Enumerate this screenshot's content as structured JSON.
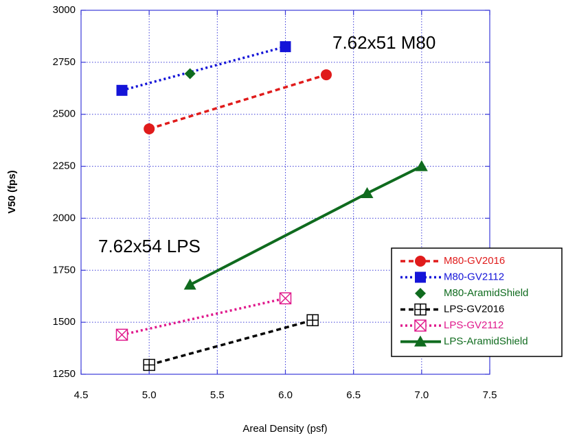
{
  "chart_data": {
    "type": "line",
    "x_label": "Areal Density (psf)",
    "y_label": "V50 (fps)",
    "xlim": [
      4.5,
      7.5
    ],
    "xticks": [
      4.5,
      {
        "value": 5,
        "label": "5.0"
      },
      5.5,
      {
        "value": 6,
        "label": "6.0"
      },
      6.5,
      {
        "value": 7,
        "label": "7.0"
      },
      7.5
    ],
    "ylim": [
      1250,
      3000
    ],
    "yticks": [
      1250,
      1500,
      1750,
      2000,
      2250,
      2500,
      2750,
      3000
    ],
    "grid": true,
    "legend": "center right",
    "annotations": [
      "7.62x51 M80",
      "7.62x54 LPS"
    ],
    "series": [
      {
        "name": "M80-GV2016",
        "color": "#e01b1b",
        "marker": "circle",
        "line": "dashed",
        "x": [
          5.0,
          6.3
        ],
        "values": [
          2430,
          2690
        ]
      },
      {
        "name": "M80-GV2112",
        "color": "#1414d8",
        "marker": "square",
        "line": "dotted",
        "x": [
          4.8,
          6.0
        ],
        "values": [
          2615,
          2825
        ]
      },
      {
        "name": "M80-AramidShield",
        "color": "#0f6b1e",
        "marker": "diamond",
        "line": "none",
        "x": [
          5.3
        ],
        "values": [
          2695
        ]
      },
      {
        "name": "LPS-GV2016",
        "color": "#000000",
        "marker": "square-plus",
        "line": "dashed",
        "x": [
          5.0,
          6.2
        ],
        "values": [
          1295,
          1510
        ]
      },
      {
        "name": "LPS-GV2112",
        "color": "#e0198c",
        "marker": "square-x",
        "line": "dotted",
        "x": [
          4.8,
          6.0
        ],
        "values": [
          1440,
          1615
        ]
      },
      {
        "name": "LPS-AramidShield",
        "color": "#0f6b1e",
        "marker": "triangle",
        "line": "solid",
        "x": [
          5.3,
          6.6,
          7.0
        ],
        "values": [
          1680,
          2120,
          2250
        ]
      }
    ]
  }
}
